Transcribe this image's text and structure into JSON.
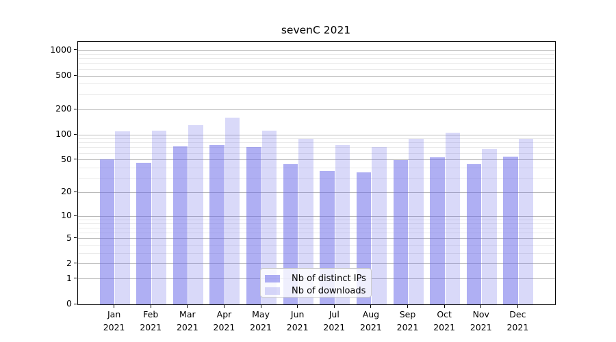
{
  "chart_data": {
    "type": "bar",
    "title": "sevenC 2021",
    "categories": [
      "Jan",
      "Feb",
      "Mar",
      "Apr",
      "May",
      "Jun",
      "Jul",
      "Aug",
      "Sep",
      "Oct",
      "Nov",
      "Dec"
    ],
    "category_year": "2021",
    "series": [
      {
        "name": "Nb of distinct IPs",
        "color": "rgba(104,104,232,0.53)",
        "values": [
          51,
          46,
          73,
          76,
          71,
          44,
          37,
          35,
          50,
          54,
          44,
          55
        ]
      },
      {
        "name": "Nb of downloads",
        "color": "rgba(104,104,232,0.25)",
        "values": [
          110,
          112,
          130,
          160,
          113,
          90,
          75,
          71,
          90,
          105,
          67,
          89
        ]
      }
    ],
    "y_axis": {
      "scale": "log(1+x)",
      "ticks": [
        0,
        1,
        2,
        5,
        10,
        20,
        50,
        100,
        200,
        500,
        1000
      ],
      "minor_ticks": [
        3,
        4,
        6,
        7,
        8,
        9,
        30,
        40,
        60,
        70,
        80,
        90,
        300,
        400,
        600,
        700,
        800,
        900
      ],
      "range": [
        0,
        1270
      ]
    },
    "grid": true,
    "legend_position": "lower center",
    "colors": {
      "bar_distinct_ips_rendered": "#afaff3",
      "bar_downloads_rendered": "#d9d9f9",
      "major_grid": "#b9b9b9",
      "minor_grid": "#eaeaea",
      "spine": "#000000"
    }
  }
}
